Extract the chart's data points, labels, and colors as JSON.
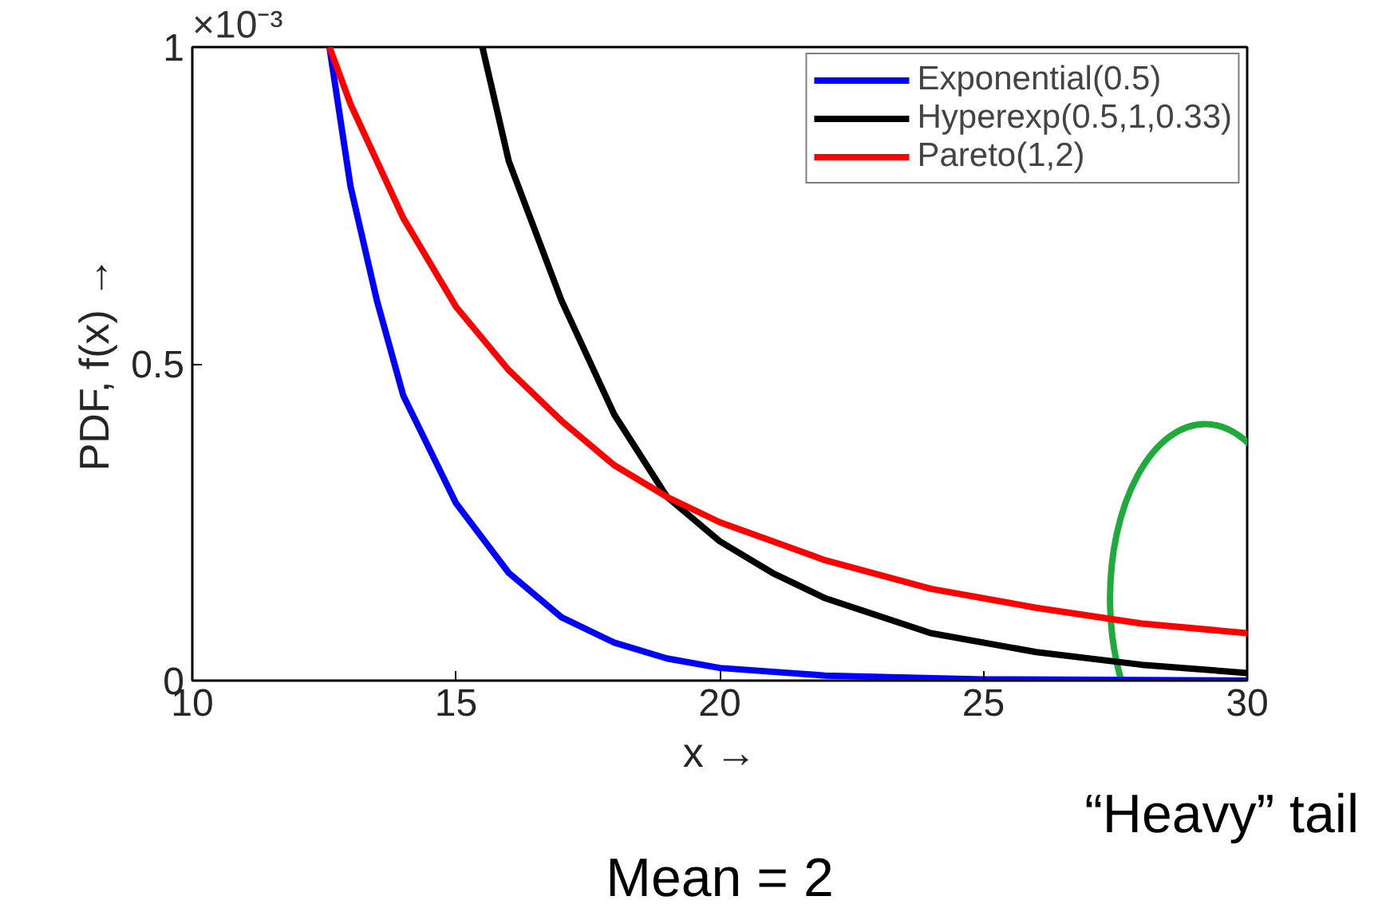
{
  "chart_data": {
    "type": "line",
    "xlabel": "x →",
    "ylabel": "PDF, f(x) →",
    "xlim": [
      10,
      30
    ],
    "ylim": [
      0,
      1
    ],
    "xticks": [
      10,
      15,
      20,
      25,
      30
    ],
    "yticks": [
      0,
      0.5,
      1
    ],
    "grid": false,
    "legend": "top right",
    "line_style": "solid",
    "marker": "none",
    "annotations": [
      "×10⁻³",
      "“Heavy” tail",
      "Mean = 2"
    ],
    "series": [
      {
        "name": "Exponential(0.5)",
        "color": "#0000ff",
        "x": [
          12.6,
          13,
          13.5,
          14,
          15,
          16,
          17,
          18,
          19,
          20,
          22,
          25,
          30
        ],
        "values": [
          1.0,
          0.78,
          0.6,
          0.45,
          0.28,
          0.17,
          0.1,
          0.06,
          0.035,
          0.02,
          0.008,
          0.002,
          0
        ]
      },
      {
        "name": "Hyperexp(0.5,1,0.33)",
        "color": "#000000",
        "x": [
          15.5,
          16,
          17,
          18,
          19,
          20,
          21,
          22,
          24,
          26,
          28,
          30
        ],
        "values": [
          1.0,
          0.82,
          0.6,
          0.42,
          0.29,
          0.22,
          0.17,
          0.13,
          0.075,
          0.045,
          0.025,
          0.012
        ]
      },
      {
        "name": "Pareto(1,2)",
        "color": "#ff0000",
        "x": [
          12.6,
          13,
          14,
          15,
          16,
          17,
          18,
          19,
          20,
          22,
          24,
          26,
          28,
          30
        ],
        "values": [
          1.0,
          0.91,
          0.73,
          0.59,
          0.49,
          0.41,
          0.34,
          0.29,
          0.25,
          0.19,
          0.145,
          0.115,
          0.09,
          0.075
        ]
      }
    ]
  }
}
